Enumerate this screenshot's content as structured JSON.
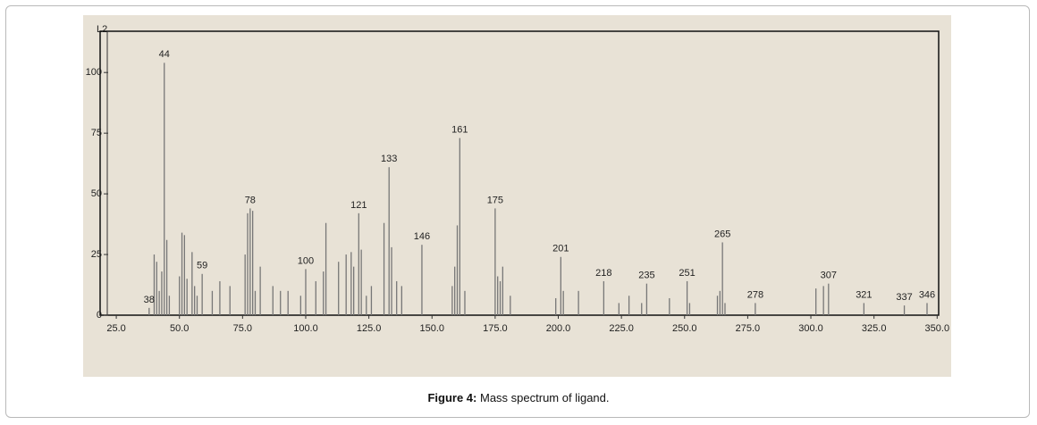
{
  "chart_data": {
    "type": "bar",
    "top_label": "L2",
    "caption_label": "Figure 4:",
    "caption_text": "Mass spectrum of ligand.",
    "xlim": [
      18.6,
      350.6
    ],
    "ylim": [
      0,
      117
    ],
    "yticks": [
      0,
      25,
      50,
      75,
      100
    ],
    "xticks": [
      {
        "value": 25,
        "label": "25.0"
      },
      {
        "value": 50,
        "label": "50.0"
      },
      {
        "value": 75,
        "label": "75.0"
      },
      {
        "value": 100,
        "label": "100.0"
      },
      {
        "value": 125,
        "label": "125.0"
      },
      {
        "value": 150,
        "label": "150.0"
      },
      {
        "value": 175,
        "label": "175.0"
      },
      {
        "value": 200,
        "label": "200.0"
      },
      {
        "value": 225,
        "label": "225.0"
      },
      {
        "value": 250,
        "label": "250.0"
      },
      {
        "value": 275,
        "label": "275.0"
      },
      {
        "value": 300,
        "label": "300.0"
      },
      {
        "value": 325,
        "label": "325.0"
      },
      {
        "value": 350,
        "label": "350.0"
      }
    ],
    "color": "#777",
    "peaks": {
      "x": [
        38,
        44,
        59,
        78,
        100,
        121,
        133,
        146,
        161,
        175,
        201,
        218,
        235,
        251,
        265,
        278,
        307,
        321,
        337,
        346
      ],
      "values": [
        3,
        104,
        17,
        44,
        19,
        42,
        61,
        29,
        73,
        44,
        24,
        14,
        13,
        14,
        30,
        5,
        13,
        5,
        4,
        5
      ]
    },
    "minor_peaks": {
      "x": [
        40,
        41,
        42,
        43,
        45,
        46,
        50,
        51,
        52,
        53,
        55,
        56,
        57,
        63,
        66,
        70,
        76,
        77,
        79,
        80,
        82,
        87,
        90,
        93,
        98,
        104,
        107,
        108,
        113,
        116,
        118,
        119,
        122,
        124,
        126,
        131,
        134,
        136,
        138,
        158,
        159,
        160,
        163,
        176,
        177,
        178,
        181,
        199,
        202,
        208,
        224,
        228,
        233,
        244,
        252,
        263,
        264,
        266,
        302,
        305
      ],
      "values": [
        25,
        22,
        10,
        18,
        31,
        8,
        16,
        34,
        33,
        15,
        26,
        12,
        8,
        10,
        14,
        12,
        25,
        42,
        43,
        10,
        20,
        12,
        10,
        10,
        8,
        14,
        18,
        38,
        22,
        25,
        26,
        20,
        27,
        8,
        12,
        38,
        28,
        14,
        12,
        12,
        20,
        37,
        10,
        16,
        14,
        20,
        8,
        7,
        10,
        10,
        5,
        8,
        5,
        7,
        5,
        8,
        10,
        5,
        11,
        12
      ]
    }
  }
}
